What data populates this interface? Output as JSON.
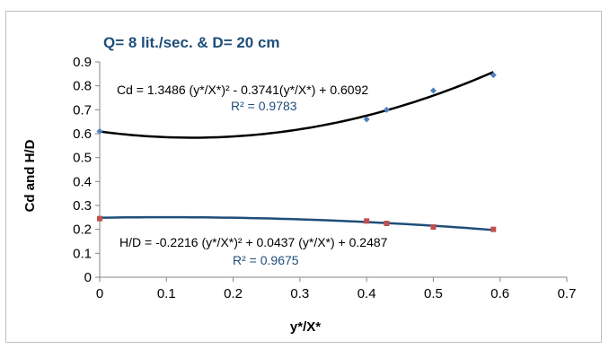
{
  "chart_data": {
    "type": "scatter",
    "title": "Q= 8 lit./sec. & D= 20 cm",
    "xlabel": "y*/X*",
    "ylabel": "Cd and H/D",
    "xlim": [
      0,
      0.7
    ],
    "ylim": [
      0,
      0.9
    ],
    "xticks": [
      "0",
      "0.1",
      "0.2",
      "0.3",
      "0.4",
      "0.5",
      "0.6",
      "0.7"
    ],
    "yticks": [
      "0",
      "0.1",
      "0.2",
      "0.3",
      "0.4",
      "0.5",
      "0.6",
      "0.7",
      "0.8",
      "0.9"
    ],
    "grid": false,
    "legend": "none",
    "series": [
      {
        "color": "#4f81bd",
        "marker": "diamond",
        "x": [
          0,
          0.4,
          0.43,
          0.5,
          0.59
        ],
        "y": [
          0.61,
          0.66,
          0.7,
          0.78,
          0.845
        ],
        "trendline": {
          "coefficients": [
            1.3486,
            -0.3741,
            0.6092
          ],
          "equation": "Cd = 1.3486 (y*/X*)² - 0.3741(y*/X*) + 0.6092",
          "r2": "R² = 0.9783",
          "color": "#000000"
        }
      },
      {
        "color": "#c0504d",
        "marker": "square",
        "x": [
          0,
          0.4,
          0.43,
          0.5,
          0.59
        ],
        "y": [
          0.245,
          0.235,
          0.225,
          0.21,
          0.2
        ],
        "trendline": {
          "coefficients": [
            -0.2216,
            0.0437,
            0.2487
          ],
          "equation": "H/D = -0.2216 (y*/X*)² + 0.0437 (y*/X*) + 0.2487",
          "r2": "R² = 0.9675",
          "color": "#1f4e79"
        }
      }
    ]
  }
}
